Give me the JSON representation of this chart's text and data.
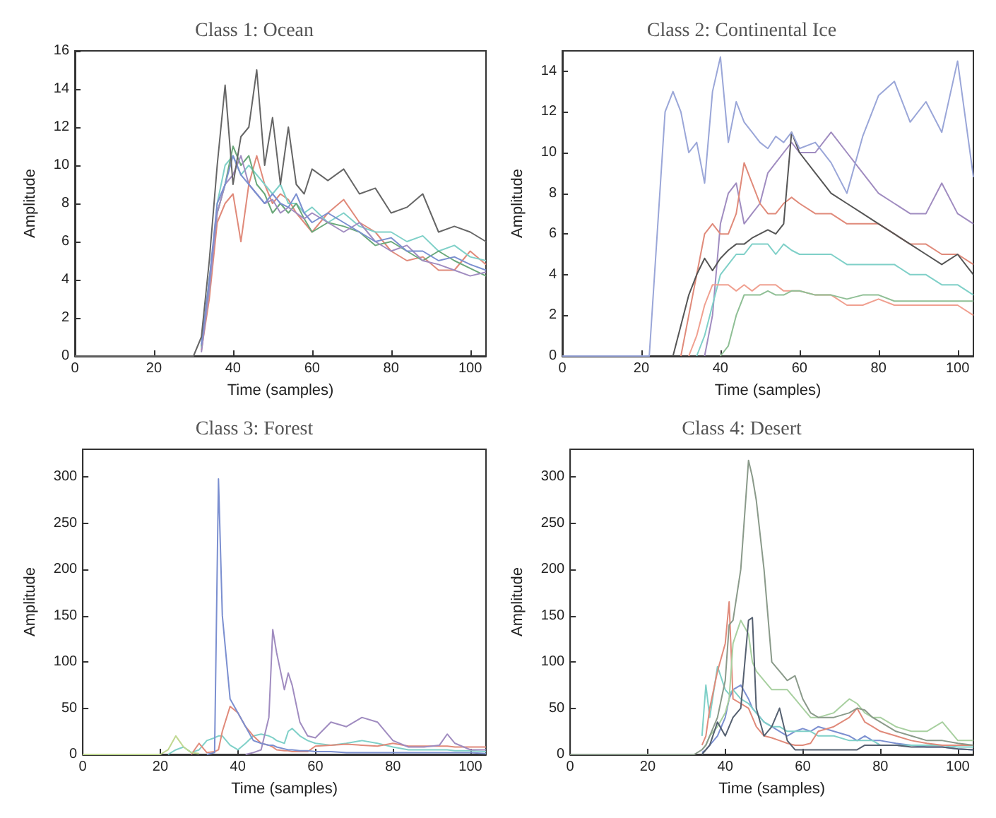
{
  "chart_data": [
    {
      "type": "line",
      "title": "Class 1: Ocean",
      "xlabel": "Time (samples)",
      "ylabel": "Amplitude",
      "xlim": [
        0,
        104
      ],
      "xticks": [
        0,
        20,
        40,
        60,
        80,
        100
      ],
      "ylim": [
        0,
        16
      ],
      "yticks": [
        0,
        2,
        4,
        6,
        8,
        10,
        12,
        14,
        16
      ],
      "marker": "none",
      "x": [
        0,
        30,
        32,
        34,
        36,
        38,
        40,
        42,
        44,
        46,
        48,
        50,
        52,
        54,
        56,
        58,
        60,
        64,
        68,
        72,
        76,
        80,
        84,
        88,
        92,
        96,
        100,
        104
      ],
      "series": [
        {
          "color": "#e08a7a",
          "values": [
            null,
            null,
            0.3,
            3,
            7,
            8,
            8.5,
            6,
            9,
            10.5,
            9,
            8,
            8.5,
            8.2,
            7.5,
            7,
            6.5,
            7.5,
            8.2,
            7,
            6.5,
            5.5,
            5,
            5.2,
            4.5,
            4.5,
            5.5,
            4.8
          ]
        },
        {
          "color": "#7fd0c8",
          "values": [
            null,
            null,
            0.4,
            3.5,
            8,
            10,
            10.5,
            9.5,
            10,
            9.5,
            9,
            8.5,
            9,
            8,
            8,
            7.5,
            7.8,
            7,
            7.5,
            6.8,
            6.5,
            6.5,
            6,
            6.3,
            5.5,
            5.8,
            5.2,
            5
          ]
        },
        {
          "color": "#6aa87a",
          "values": [
            null,
            null,
            0.5,
            4,
            7.5,
            9,
            11,
            10,
            10.5,
            9,
            8.5,
            7.5,
            8,
            7.5,
            8,
            7.2,
            6.5,
            7,
            6.8,
            6.5,
            5.8,
            6,
            5.5,
            5,
            5.5,
            5,
            4.6,
            4.2
          ]
        },
        {
          "color": "#a08cc0",
          "values": [
            null,
            null,
            0.2,
            3.5,
            7.5,
            9,
            9.5,
            10.5,
            9,
            8.5,
            8,
            8.2,
            7.5,
            7.8,
            7.5,
            7.2,
            7.5,
            7,
            6.5,
            7,
            6,
            5.5,
            5.8,
            5,
            4.8,
            4.5,
            4.2,
            4.4
          ]
        },
        {
          "color": "#7b8fd0",
          "values": [
            null,
            null,
            0.6,
            4,
            8,
            9,
            10.5,
            9.5,
            9,
            8.5,
            8,
            8.5,
            8,
            7.8,
            8.5,
            7.5,
            7,
            7.5,
            7,
            6.5,
            6,
            6.2,
            5.5,
            5.5,
            5,
            5.2,
            4.8,
            4.5
          ]
        },
        {
          "color": "#666666",
          "values": [
            0,
            0,
            1,
            5,
            10,
            14.2,
            9,
            11.5,
            12,
            15,
            10,
            12.5,
            9,
            12,
            9,
            8.5,
            9.8,
            9.2,
            9.8,
            8.5,
            8.8,
            7.5,
            7.8,
            8.5,
            6.5,
            6.8,
            6.5,
            6
          ]
        }
      ]
    },
    {
      "type": "line",
      "title": "Class 2: Continental Ice",
      "xlabel": "Time (samples)",
      "ylabel": "Amplitude",
      "xlim": [
        0,
        104
      ],
      "xticks": [
        0,
        20,
        40,
        60,
        80,
        100
      ],
      "ylim": [
        0,
        15
      ],
      "yticks": [
        0,
        2,
        4,
        6,
        8,
        10,
        12,
        14
      ],
      "marker": "none",
      "x": [
        0,
        20,
        22,
        24,
        26,
        28,
        30,
        32,
        34,
        36,
        38,
        40,
        42,
        44,
        46,
        48,
        50,
        52,
        54,
        56,
        58,
        60,
        64,
        68,
        72,
        76,
        80,
        84,
        88,
        92,
        96,
        100,
        104
      ],
      "series": [
        {
          "color": "#a08cc0",
          "values": [
            null,
            null,
            null,
            null,
            null,
            null,
            null,
            null,
            null,
            0,
            2,
            6.5,
            8,
            8.5,
            6.5,
            7,
            7.5,
            9,
            9.5,
            10,
            10.5,
            10,
            10,
            11,
            10,
            9,
            8,
            7.5,
            7,
            7,
            8.5,
            7,
            6.5
          ]
        },
        {
          "color": "#e08a7a",
          "values": [
            null,
            null,
            null,
            null,
            null,
            null,
            0,
            2,
            4,
            6,
            6.5,
            6,
            6,
            7,
            9.5,
            8.5,
            7.5,
            7,
            7,
            7.5,
            7.8,
            7.5,
            7,
            7,
            6.5,
            6.5,
            6.5,
            6,
            5.5,
            5.5,
            5,
            5,
            4.5
          ]
        },
        {
          "color": "#7fd0c8",
          "values": [
            null,
            null,
            null,
            null,
            null,
            null,
            null,
            null,
            0,
            1,
            2.5,
            4,
            4.5,
            5,
            5,
            5.5,
            5.5,
            5.5,
            5,
            5.5,
            5.2,
            5,
            5,
            5,
            4.5,
            4.5,
            4.5,
            4.5,
            4,
            4,
            3.5,
            3.5,
            3
          ]
        },
        {
          "color": "#f0a090",
          "values": [
            null,
            null,
            null,
            null,
            null,
            null,
            null,
            0,
            1,
            2.5,
            3.5,
            3.5,
            3.5,
            3.2,
            3.5,
            3.2,
            3.5,
            3.5,
            3.5,
            3.2,
            3.2,
            3.2,
            3,
            3,
            2.5,
            2.5,
            2.8,
            2.5,
            2.5,
            2.5,
            2.5,
            2.5,
            2
          ]
        },
        {
          "color": "#8fbf95",
          "values": [
            null,
            null,
            null,
            null,
            null,
            null,
            null,
            null,
            null,
            null,
            null,
            0,
            0.5,
            2,
            3,
            3,
            3,
            3.2,
            3,
            3,
            3.2,
            3.2,
            3,
            3,
            2.8,
            3,
            3,
            2.7,
            2.7,
            2.7,
            2.7,
            2.7,
            2.7
          ]
        },
        {
          "color": "#555555",
          "values": [
            null,
            null,
            null,
            null,
            null,
            0,
            1.5,
            3,
            4,
            4.8,
            4.2,
            4.8,
            5.2,
            5.5,
            5.5,
            5.8,
            6,
            6.2,
            6,
            6.5,
            11,
            10,
            9,
            8,
            7.5,
            7,
            6.5,
            6,
            5.5,
            5,
            4.5,
            5,
            4
          ]
        },
        {
          "color": "#9aa6d8",
          "values": [
            0,
            0,
            0,
            6,
            12,
            13,
            12,
            10,
            10.5,
            8.5,
            13,
            14.7,
            10.5,
            12.5,
            11.5,
            11,
            10.5,
            10.2,
            10.8,
            10.5,
            11,
            10.2,
            10.5,
            9.5,
            8,
            10.8,
            12.8,
            13.5,
            11.5,
            12.5,
            11,
            14.5,
            8.8
          ]
        }
      ]
    },
    {
      "type": "line",
      "title": "Class 3: Forest",
      "xlabel": "Time (samples)",
      "ylabel": "Amplitude",
      "xlim": [
        0,
        104
      ],
      "xticks": [
        0,
        20,
        40,
        60,
        80,
        100
      ],
      "ylim": [
        0,
        330
      ],
      "yticks": [
        0,
        50,
        100,
        150,
        200,
        250,
        300
      ],
      "marker": "none",
      "x": [
        0,
        20,
        22,
        24,
        26,
        28,
        30,
        32,
        34,
        35,
        36,
        38,
        40,
        42,
        44,
        46,
        48,
        49,
        50,
        52,
        53,
        54,
        56,
        58,
        60,
        64,
        68,
        72,
        76,
        80,
        84,
        88,
        92,
        94,
        96,
        100,
        104
      ],
      "series": [
        {
          "color": "#7fd0c8",
          "values": [
            null,
            null,
            0,
            5,
            8,
            2,
            5,
            15,
            18,
            20,
            20,
            10,
            5,
            12,
            20,
            22,
            20,
            18,
            15,
            12,
            25,
            28,
            20,
            15,
            12,
            10,
            12,
            15,
            12,
            8,
            5,
            5,
            5,
            5,
            4,
            4,
            3
          ]
        },
        {
          "color": "#e08a7a",
          "values": [
            null,
            null,
            null,
            null,
            null,
            0,
            12,
            2,
            3,
            5,
            25,
            52,
            45,
            30,
            20,
            12,
            10,
            8,
            5,
            4,
            4,
            3,
            3,
            3,
            9,
            10,
            11,
            10,
            9,
            12,
            9,
            9,
            9,
            9,
            8,
            8,
            8
          ]
        },
        {
          "color": "#a08cc0",
          "values": [
            null,
            null,
            null,
            null,
            null,
            null,
            null,
            null,
            null,
            null,
            null,
            null,
            null,
            0,
            2,
            5,
            40,
            135,
            110,
            70,
            88,
            75,
            35,
            20,
            18,
            35,
            30,
            40,
            35,
            15,
            8,
            8,
            10,
            22,
            12,
            5,
            5
          ]
        },
        {
          "color": "#7b8fd0",
          "values": [
            null,
            null,
            null,
            null,
            null,
            null,
            null,
            0,
            2,
            298,
            150,
            60,
            45,
            30,
            15,
            12,
            10,
            10,
            8,
            6,
            5,
            5,
            4,
            4,
            3,
            3,
            2,
            2,
            2,
            2,
            2,
            2,
            2,
            2,
            2,
            2,
            1
          ]
        },
        {
          "color": "#c0d890",
          "values": [
            0,
            0,
            5,
            20,
            8,
            2,
            1,
            null,
            null,
            null,
            null,
            null,
            null,
            null,
            null,
            null,
            null,
            null,
            null,
            null,
            null,
            null,
            null,
            null,
            null,
            null,
            null,
            null,
            null,
            null,
            null,
            null,
            null,
            null,
            null,
            null,
            null
          ]
        }
      ]
    },
    {
      "type": "line",
      "title": "Class 4: Desert",
      "xlabel": "Time (samples)",
      "ylabel": "Amplitude",
      "xlim": [
        0,
        104
      ],
      "xticks": [
        0,
        20,
        40,
        60,
        80,
        100
      ],
      "ylim": [
        0,
        330
      ],
      "yticks": [
        0,
        50,
        100,
        150,
        200,
        250,
        300
      ],
      "marker": "none",
      "x": [
        0,
        30,
        32,
        34,
        35,
        36,
        38,
        40,
        41,
        42,
        44,
        46,
        47,
        48,
        50,
        52,
        54,
        56,
        58,
        60,
        62,
        64,
        68,
        72,
        74,
        76,
        78,
        80,
        84,
        88,
        92,
        96,
        100,
        104
      ],
      "series": [
        {
          "color": "#7b8fd0",
          "values": [
            null,
            null,
            null,
            2,
            5,
            10,
            20,
            40,
            60,
            70,
            75,
            60,
            50,
            45,
            35,
            30,
            25,
            20,
            25,
            28,
            25,
            30,
            25,
            20,
            15,
            20,
            15,
            15,
            12,
            10,
            8,
            8,
            6,
            5
          ]
        },
        {
          "color": "#7fd0c8",
          "values": [
            null,
            null,
            null,
            20,
            75,
            40,
            95,
            70,
            65,
            70,
            60,
            55,
            50,
            45,
            35,
            30,
            30,
            25,
            25,
            25,
            25,
            20,
            20,
            15,
            15,
            15,
            15,
            10,
            10,
            10,
            10,
            10,
            8,
            8
          ]
        },
        {
          "color": "#e08a7a",
          "values": [
            null,
            null,
            null,
            10,
            20,
            50,
            90,
            120,
            165,
            60,
            55,
            50,
            40,
            30,
            20,
            18,
            15,
            12,
            10,
            10,
            12,
            25,
            30,
            40,
            50,
            35,
            30,
            25,
            20,
            15,
            12,
            10,
            10,
            10
          ]
        },
        {
          "color": "#a8d0a0",
          "values": [
            null,
            null,
            null,
            5,
            10,
            20,
            30,
            45,
            60,
            120,
            145,
            130,
            100,
            90,
            80,
            70,
            70,
            70,
            60,
            50,
            40,
            40,
            45,
            60,
            55,
            45,
            40,
            40,
            30,
            25,
            25,
            35,
            15,
            15
          ]
        },
        {
          "color": "#556070",
          "values": [
            null,
            null,
            null,
            0,
            5,
            10,
            35,
            20,
            30,
            40,
            50,
            145,
            148,
            50,
            20,
            30,
            50,
            15,
            5,
            5,
            5,
            5,
            5,
            5,
            5,
            10,
            10,
            10,
            10,
            8,
            8,
            8,
            6,
            5
          ]
        },
        {
          "color": "#8a9a8a",
          "values": [
            0,
            0,
            0,
            5,
            10,
            20,
            40,
            80,
            140,
            145,
            200,
            318,
            300,
            275,
            200,
            100,
            90,
            80,
            85,
            60,
            45,
            40,
            40,
            45,
            50,
            48,
            40,
            35,
            25,
            20,
            15,
            15,
            12,
            10
          ]
        }
      ]
    }
  ]
}
